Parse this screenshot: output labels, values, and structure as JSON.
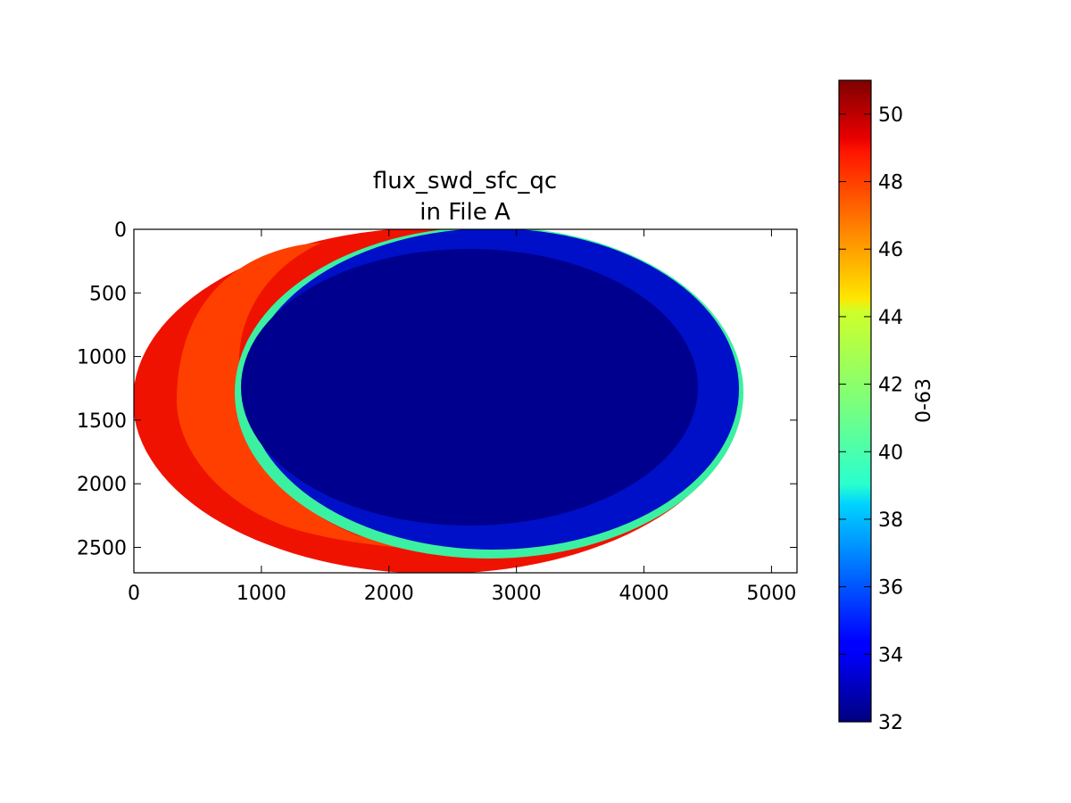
{
  "chart_data": {
    "type": "heatmap",
    "title": "flux_swd_sfc_qc\nin File A",
    "title_lines": [
      "flux_swd_sfc_qc",
      "in File A"
    ],
    "xlabel": "",
    "ylabel": "",
    "xlim": [
      0,
      5200
    ],
    "ylim": [
      2700,
      0
    ],
    "x_ticks": [
      0,
      1000,
      2000,
      3000,
      4000,
      5000
    ],
    "y_ticks": [
      0,
      500,
      1000,
      1500,
      2000,
      2500
    ],
    "grid": false,
    "colorbar": {
      "label": "0-63",
      "range": [
        32,
        51
      ],
      "ticks": [
        32,
        34,
        36,
        38,
        40,
        42,
        44,
        46,
        48,
        50
      ],
      "colormap": "jet"
    },
    "regions": [
      {
        "value": 49.5,
        "color": "#f01200",
        "description": "outer western limb band"
      },
      {
        "value": 48.3,
        "color": "#ff3f00",
        "description": "western interior crescent"
      },
      {
        "value": 40.0,
        "color": "#3bf0a0",
        "description": "terminator arc"
      },
      {
        "value": 33.6,
        "color": "#0010c8",
        "description": "outer eastern limb band"
      },
      {
        "value": 32.4,
        "color": "#00008e",
        "description": "eastern interior disk"
      }
    ],
    "disk": {
      "center": [
        2365,
        1350
      ],
      "semi_axes": [
        2365,
        1355
      ]
    }
  }
}
